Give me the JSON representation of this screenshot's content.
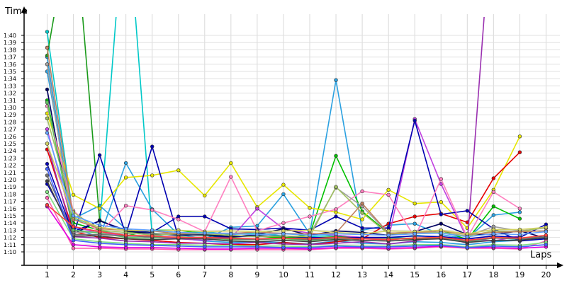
{
  "chart_data": {
    "type": "line",
    "title": "",
    "xlabel": "Laps",
    "ylabel": "Time",
    "x": [
      1,
      2,
      3,
      4,
      5,
      6,
      7,
      8,
      9,
      10,
      11,
      12,
      13,
      14,
      15,
      16,
      17,
      18,
      19,
      20
    ],
    "ylim": [
      66,
      102
    ],
    "y_ticks": [
      {
        "v": 70,
        "label": "1:10"
      },
      {
        "v": 71,
        "label": "1:11"
      },
      {
        "v": 72,
        "label": "1:12"
      },
      {
        "v": 73,
        "label": "1:13"
      },
      {
        "v": 74,
        "label": "1:14"
      },
      {
        "v": 75,
        "label": "1:15"
      },
      {
        "v": 76,
        "label": "1:16"
      },
      {
        "v": 77,
        "label": "1:17"
      },
      {
        "v": 78,
        "label": "1:18"
      },
      {
        "v": 79,
        "label": "1:19"
      },
      {
        "v": 80,
        "label": "1:20"
      },
      {
        "v": 81,
        "label": "1:21"
      },
      {
        "v": 82,
        "label": "1:22"
      },
      {
        "v": 83,
        "label": "1:23"
      },
      {
        "v": 84,
        "label": "1:24"
      },
      {
        "v": 85,
        "label": "1:25"
      },
      {
        "v": 86,
        "label": "1:26"
      },
      {
        "v": 87,
        "label": "1:27"
      },
      {
        "v": 88,
        "label": "1:28"
      },
      {
        "v": 89,
        "label": "1:29"
      },
      {
        "v": 90,
        "label": "1:30"
      },
      {
        "v": 91,
        "label": "1:31"
      },
      {
        "v": 92,
        "label": "1:32"
      },
      {
        "v": 93,
        "label": "1:33"
      },
      {
        "v": 94,
        "label": "1:34"
      },
      {
        "v": 95,
        "label": "1:35"
      },
      {
        "v": 96,
        "label": "1:36"
      },
      {
        "v": 97,
        "label": "1:37"
      },
      {
        "v": 98,
        "label": "1:38"
      },
      {
        "v": 99,
        "label": "1:39"
      },
      {
        "v": 100,
        "label": "1:40"
      }
    ],
    "x_ticks": [
      "1",
      "2",
      "3",
      "4",
      "5",
      "6",
      "7",
      "8",
      "9",
      "10",
      "11",
      "12",
      "13",
      "14",
      "15",
      "16",
      "17",
      "18",
      "19",
      "20"
    ],
    "grid": true,
    "legend": "none",
    "series": [
      {
        "color": "#00c8c8",
        "values": [
          100.5,
          74.7,
          73.4,
          120,
          72.2,
          72.6,
          72.8,
          72.4,
          72.6,
          72.2,
          72.1,
          72.3,
          72.0,
          71.8,
          72.3,
          72.0,
          71.6,
          72.0,
          71.7,
          72.1
        ]
      },
      {
        "color": "#2aa0e0",
        "values": [
          97.0,
          73.4,
          72.0,
          82.3,
          75.9,
          72.4,
          71.8,
          73.4,
          73.6,
          78.0,
          72.5,
          93.8,
          73.0,
          73.7,
          73.9,
          72.4,
          71.8,
          75.1,
          75.5,
          null
        ]
      },
      {
        "color": "#2aa0e0",
        "values": [
          95.0,
          74.6,
          76.4,
          73.2,
          72.3,
          71.9,
          71.5,
          71.3,
          71.4,
          71.3,
          71.1,
          71.5,
          71.2,
          71.1,
          71.4,
          71.3,
          71.0,
          71.4,
          71.6,
          71.9
        ]
      },
      {
        "color": "#1a9a1a",
        "values": [
          97.2,
          118,
          74.4,
          72.8,
          72.6,
          72.4,
          72.3,
          72.0,
          72.3,
          72.0,
          71.9,
          72.1,
          72.0,
          71.8,
          71.9,
          72.0,
          71.5,
          72.0,
          71.9,
          72.1
        ]
      },
      {
        "color": "#00c000",
        "values": [
          91.0,
          74.0,
          73.0,
          72.2,
          73.0,
          73.0,
          72.5,
          72.1,
          72.2,
          71.9,
          72.4,
          83.3,
          75.6,
          72.6,
          72.7,
          73.0,
          71.7,
          76.3,
          74.6,
          null
        ]
      },
      {
        "color": "#e6e600",
        "values": [
          89.2,
          77.9,
          76.0,
          80.3,
          80.6,
          81.3,
          77.8,
          82.3,
          76.2,
          79.3,
          76.1,
          75.5,
          74.5,
          78.6,
          76.7,
          76.9,
          73.3,
          78.6,
          86.0,
          null
        ]
      },
      {
        "color": "#e60000",
        "values": [
          84.2,
          72.8,
          72.0,
          71.8,
          71.6,
          71.3,
          71.2,
          71.0,
          71.0,
          71.3,
          71.0,
          71.4,
          71.8,
          73.9,
          74.9,
          75.3,
          74.1,
          80.2,
          83.8,
          null
        ]
      },
      {
        "color": "#9a30b0",
        "values": [
          85.0,
          72.1,
          71.9,
          71.5,
          71.4,
          71.2,
          71.2,
          71.1,
          71.3,
          71.1,
          71.0,
          71.2,
          71.4,
          71.1,
          71.5,
          72.2,
          71.2,
          120,
          null,
          null
        ]
      },
      {
        "color": "#c040e0",
        "values": [
          87.0,
          73.5,
          72.6,
          72.3,
          72.0,
          71.8,
          71.6,
          71.9,
          76.0,
          73.2,
          72.6,
          72.3,
          72.0,
          71.8,
          88.4,
          79.4,
          71.8,
          71.5,
          72.2,
          null
        ]
      },
      {
        "color": "#0000b0",
        "values": [
          82.2,
          72.4,
          83.4,
          72.4,
          84.6,
          72.0,
          72.0,
          72.1,
          72.2,
          72.2,
          72.0,
          71.9,
          72.0,
          72.0,
          72.2,
          72.1,
          71.8,
          72.2,
          72.0,
          73.8
        ]
      },
      {
        "color": "#0000b0",
        "values": [
          79.4,
          72.8,
          74.3,
          73.0,
          72.7,
          74.9,
          74.9,
          73.2,
          73.1,
          73.3,
          73.0,
          74.9,
          73.3,
          73.3,
          88.2,
          75.2,
          75.7,
          73.2,
          71.5,
          71.8
        ]
      },
      {
        "color": "#000060",
        "values": [
          92.5,
          72.5,
          74.3,
          72.9,
          72.5,
          72.3,
          72.4,
          72.1,
          72.4,
          73.2,
          72.3,
          72.9,
          72.7,
          72.3,
          72.8,
          73.9,
          72.4,
          72.4,
          72.9,
          71.9
        ]
      },
      {
        "color": "#ff80c0",
        "values": [
          90.2,
          75.7,
          72.6,
          76.4,
          75.8,
          74.5,
          72.8,
          80.4,
          72.9,
          74.0,
          74.9,
          75.9,
          78.4,
          77.9,
          72.0,
          80.1,
          72.0,
          78.3,
          76.0,
          null
        ]
      },
      {
        "color": "#ff60b0",
        "values": [
          77.5,
          70.5,
          70.5,
          70.4,
          70.4,
          70.3,
          70.3,
          70.3,
          70.3,
          70.3,
          70.3,
          70.5,
          70.5,
          70.4,
          70.5,
          70.7,
          70.5,
          70.5,
          70.4,
          71.5
        ]
      },
      {
        "color": "#e000e0",
        "values": [
          76.3,
          71.0,
          70.7,
          70.6,
          70.6,
          70.5,
          70.4,
          70.4,
          70.5,
          70.5,
          70.4,
          70.6,
          70.6,
          70.5,
          70.6,
          70.8,
          70.6,
          70.6,
          70.5,
          70.7
        ]
      },
      {
        "color": "#a0a0a0",
        "values": [
          96.0,
          72.7,
          72.8,
          72.5,
          72.5,
          72.6,
          72.6,
          72.6,
          72.7,
          72.6,
          72.4,
          78.9,
          76.3,
          72.6,
          72.7,
          72.7,
          72.2,
          73.5,
          72.9,
          73.3
        ]
      },
      {
        "color": "#a0c060",
        "values": [
          88.5,
          75.5,
          73.0,
          72.7,
          72.3,
          72.5,
          72.5,
          72.3,
          72.1,
          72.2,
          72.1,
          79.0,
          75.4,
          72.5,
          72.5,
          72.7,
          72.2,
          72.9,
          72.8,
          73.4
        ]
      },
      {
        "color": "#c08060",
        "values": [
          98.3,
          74.5,
          73.2,
          73.0,
          72.9,
          72.5,
          72.6,
          72.5,
          72.8,
          72.5,
          72.5,
          72.6,
          76.7,
          72.6,
          72.7,
          72.9,
          72.4,
          72.7,
          72.8,
          72.9
        ]
      },
      {
        "color": "#60c060",
        "values": [
          90.7,
          73.0,
          72.6,
          72.0,
          71.9,
          72.1,
          71.9,
          71.7,
          71.7,
          71.8,
          71.6,
          71.8,
          71.8,
          71.8,
          71.8,
          71.9,
          71.4,
          71.9,
          71.8,
          72.1
        ]
      },
      {
        "color": "#80e080",
        "values": [
          78.3,
          71.8,
          71.4,
          71.2,
          71.0,
          71.0,
          70.9,
          70.9,
          70.8,
          70.8,
          70.7,
          70.9,
          70.8,
          70.8,
          71.0,
          71.0,
          70.7,
          71.0,
          70.9,
          71.3
        ]
      },
      {
        "color": "#404040",
        "values": [
          79.8,
          72.2,
          72.2,
          71.8,
          71.7,
          71.8,
          71.8,
          71.5,
          71.4,
          71.6,
          71.4,
          71.7,
          71.6,
          71.5,
          71.7,
          71.8,
          71.3,
          71.6,
          71.6,
          72.0
        ]
      },
      {
        "color": "#707070",
        "values": [
          80.6,
          72.4,
          72.4,
          72.2,
          72.1,
          72.0,
          71.9,
          71.8,
          71.7,
          71.9,
          71.7,
          71.9,
          71.8,
          71.7,
          71.9,
          72.0,
          71.5,
          71.9,
          71.8,
          72.1
        ]
      },
      {
        "color": "#4060ff",
        "values": [
          81.5,
          71.6,
          71.2,
          71.0,
          70.9,
          70.8,
          70.7,
          70.7,
          70.7,
          70.6,
          70.6,
          70.8,
          70.7,
          70.7,
          70.8,
          70.9,
          70.6,
          70.8,
          70.7,
          71.0
        ]
      },
      {
        "color": "#d0d060",
        "values": [
          85.0,
          74.8,
          73.4,
          73.0,
          72.9,
          73.0,
          72.8,
          72.9,
          72.8,
          72.9,
          73.0,
          72.7,
          72.5,
          72.9,
          72.8,
          73.0,
          72.5,
          73.1,
          73.1,
          73.4
        ]
      },
      {
        "color": "#ff4040",
        "values": [
          76.5,
          73.5,
          72.8,
          72.3,
          72.2,
          72.0,
          72.0,
          71.9,
          71.8,
          71.9,
          71.8,
          72.0,
          71.8,
          71.7,
          71.9,
          72.0,
          71.6,
          72.0,
          71.9,
          72.3
        ]
      },
      {
        "color": "#60a0ff",
        "values": [
          86.5,
          75.0,
          73.7,
          73.2,
          73.0,
          72.7,
          72.6,
          72.5,
          72.4,
          72.5,
          72.3,
          72.5,
          72.4,
          72.3,
          72.5,
          72.6,
          72.1,
          72.5,
          72.4,
          72.8
        ]
      }
    ]
  }
}
